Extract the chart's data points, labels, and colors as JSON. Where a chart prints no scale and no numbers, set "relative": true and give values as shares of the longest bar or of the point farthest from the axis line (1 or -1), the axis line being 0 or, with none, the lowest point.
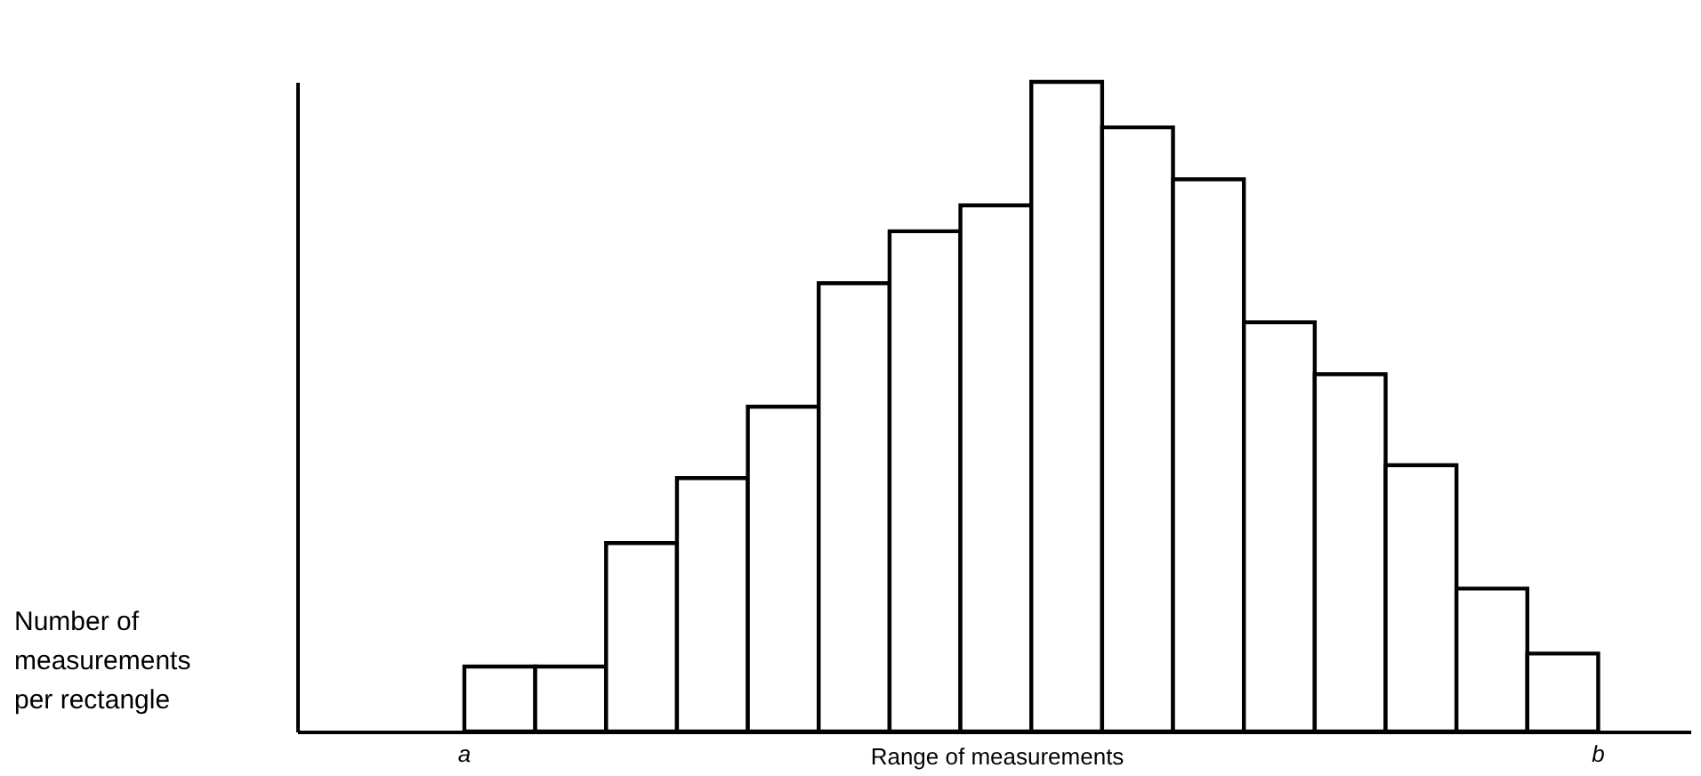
{
  "chart_data": {
    "type": "bar",
    "relative": true,
    "xlabel": "Range of measurements",
    "categories": [
      null,
      null,
      null,
      null,
      null,
      null,
      null,
      null,
      null,
      null,
      null,
      null,
      null,
      null,
      null,
      null
    ],
    "values": [
      0.1,
      0.1,
      0.29,
      0.39,
      0.5,
      0.69,
      0.77,
      0.81,
      1,
      0.93,
      0.85,
      0.63,
      0.55,
      0.41,
      0.22,
      0.12
    ],
    "color": "#ffffff",
    "grid": false,
    "annotations": [
      "a",
      "b",
      "Number of measurements per rectangle"
    ]
  }
}
